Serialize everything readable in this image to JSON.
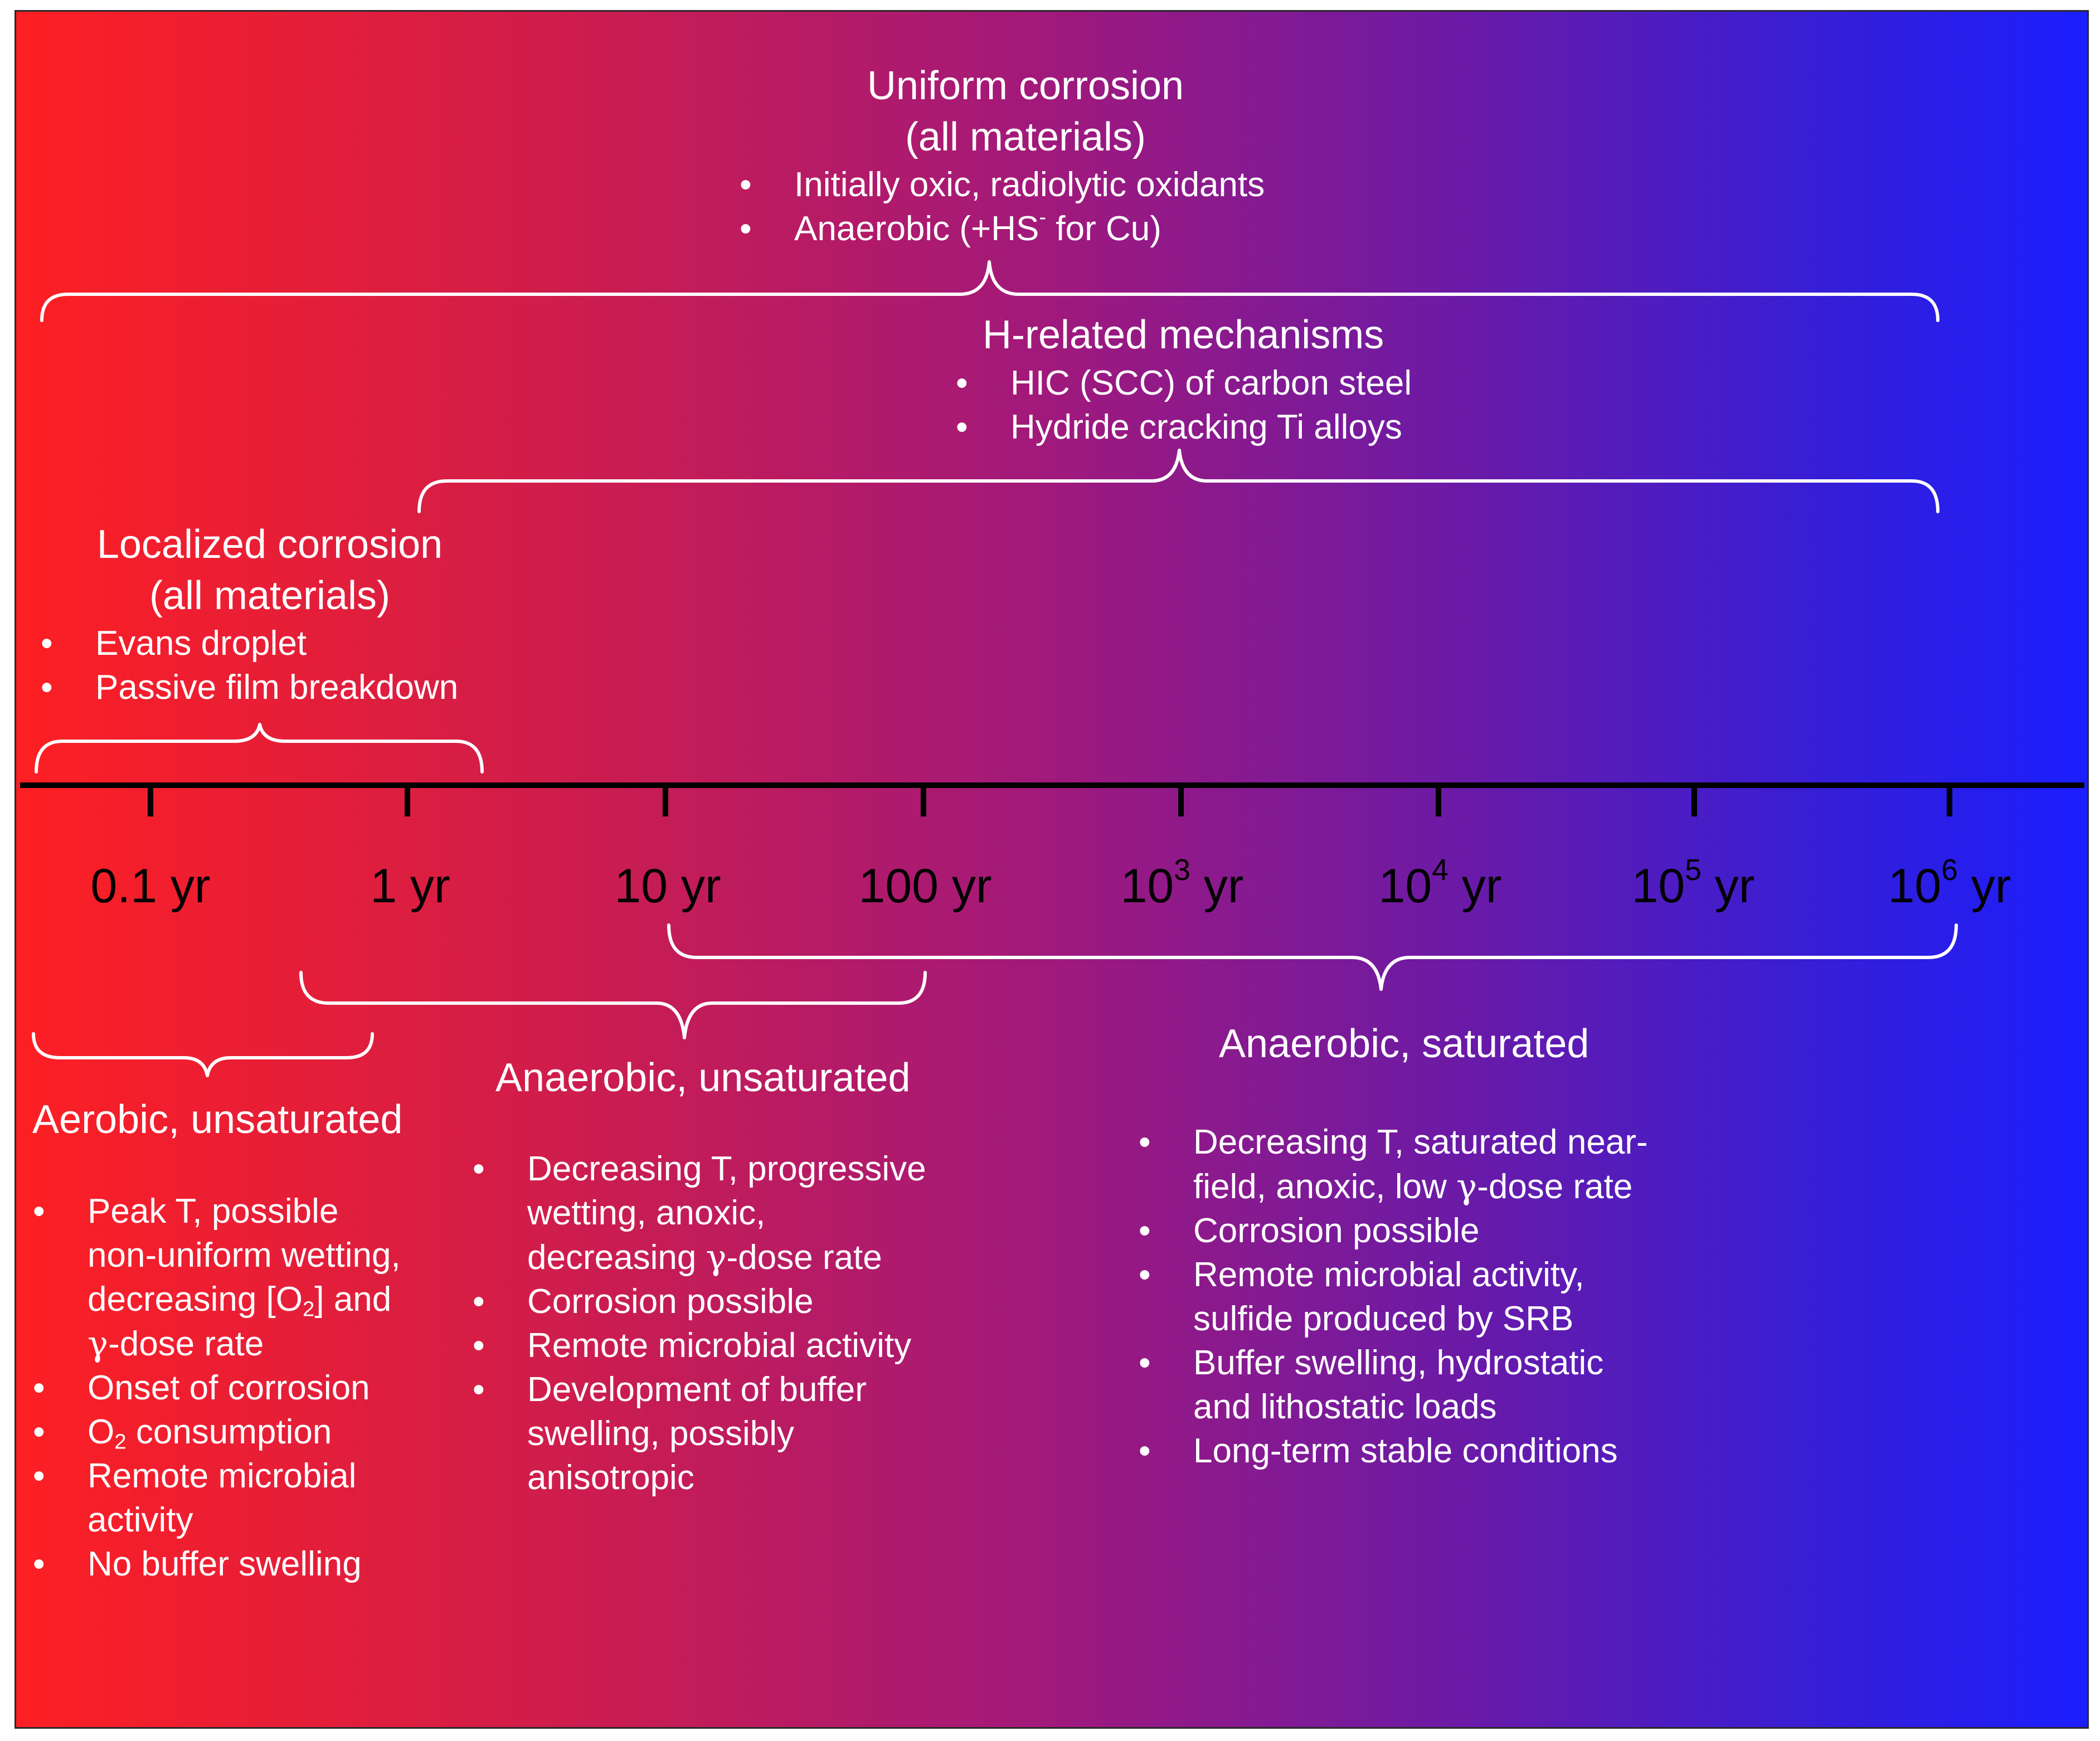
{
  "uniform": {
    "title1": "Uniform corrosion",
    "title2": "(all materials)",
    "items": [
      [
        "Initially oxic, radiolytic oxidants"
      ],
      [
        "Anaerobic (+HS",
        "-",
        " for Cu)"
      ]
    ]
  },
  "hrelated": {
    "title": "H-related mechanisms",
    "items": [
      "HIC (SCC) of carbon steel",
      "Hydride cracking Ti alloys"
    ]
  },
  "localized": {
    "title1": "Localized corrosion",
    "title2": "(all materials)",
    "items": [
      "Evans droplet",
      "Passive film breakdown"
    ]
  },
  "axis": {
    "ticks": [
      {
        "base": "0.1 yr"
      },
      {
        "base": "1 yr"
      },
      {
        "base": "10 yr"
      },
      {
        "base": "100 yr"
      },
      {
        "base": "10",
        "exp": "3",
        "unit": " yr"
      },
      {
        "base": "10",
        "exp": "4",
        "unit": " yr"
      },
      {
        "base": "10",
        "exp": "5",
        "unit": " yr"
      },
      {
        "base": "10",
        "exp": "6",
        "unit": " yr"
      }
    ]
  },
  "aerobic_unsat": {
    "title": "Aerobic, unsaturated",
    "items": {
      "peak": [
        "Peak T, possible",
        "non-uniform wetting,",
        "decreasing [O",
        "2",
        "] and",
        "γ",
        "-dose rate"
      ],
      "onset": "Onset of corrosion",
      "o2": [
        "O",
        "2",
        " consumption"
      ],
      "microbial": [
        "Remote microbial",
        "activity"
      ],
      "swelling": "No buffer swelling"
    }
  },
  "anaerobic_unsat": {
    "title": "Anaerobic, unsaturated",
    "items": {
      "decreasing": [
        "Decreasing T, progressive",
        "wetting, anoxic,",
        "decreasing ",
        "γ",
        "-dose rate"
      ],
      "corrosion": "Corrosion possible",
      "microbial": "Remote microbial activity",
      "development": [
        "Development of buffer",
        "swelling, possibly",
        "anisotropic"
      ]
    }
  },
  "anaerobic_sat": {
    "title": "Anaerobic, saturated",
    "items": {
      "decreasing": [
        "Decreasing T, saturated near-",
        "field, anoxic, low ",
        "γ",
        "-dose rate"
      ],
      "corrosion": "Corrosion possible",
      "microbial": [
        "Remote microbial activity,",
        "sulfide produced by SRB"
      ],
      "buffer": [
        "Buffer swelling, hydrostatic",
        "and lithostatic loads"
      ],
      "longterm": "Long-term stable conditions"
    }
  },
  "bullet": "•",
  "colors": {
    "text": "#ffffff",
    "axis": "#000000",
    "gradient_left": "#fd1f23",
    "gradient_right": "#1b1efe"
  }
}
